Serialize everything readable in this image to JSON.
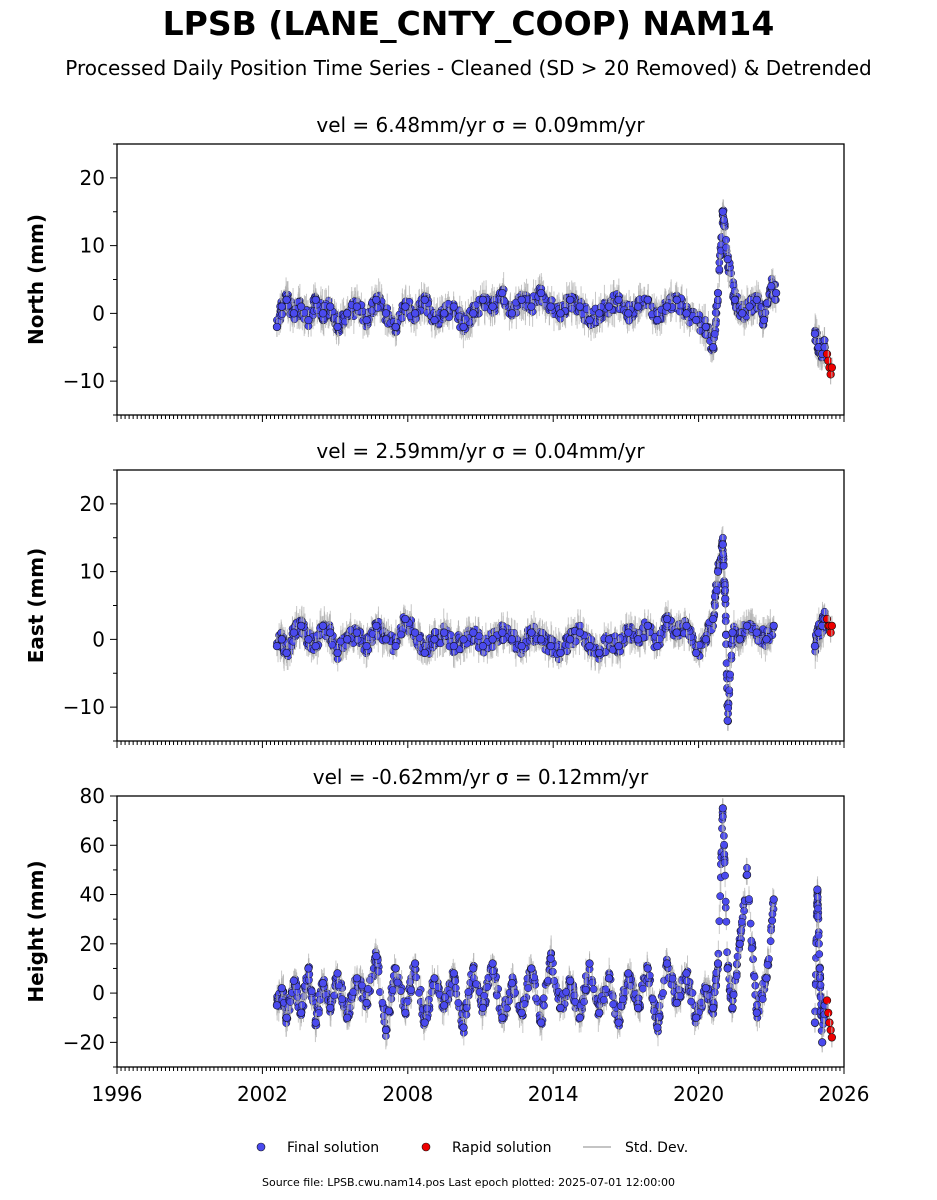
{
  "title": "LPSB (LANE_CNTY_COOP) NAM14",
  "subtitle": "Processed Daily Position Time Series - Cleaned (SD > 20 Removed) & Detrended",
  "footer": "Source file: LPSB.cwu.nam14.pos  Last epoch plotted: 2025-07-01 12:00:00",
  "legend": {
    "final_label": "Final solution",
    "rapid_label": "Rapid solution",
    "stddev_label": "Std. Dev."
  },
  "colors": {
    "final": "#4a4aee",
    "rapid": "#ee0000",
    "stddev": "#b0b0b0"
  },
  "chart_data": [
    {
      "type": "scatter",
      "title": "vel = 6.48mm/yr   σ = 0.09mm/yr",
      "ylabel": "North (mm)",
      "xlim": [
        1996,
        2026
      ],
      "ylim": [
        -15,
        25
      ],
      "xticks": [
        "1996",
        "2002",
        "2008",
        "2014",
        "2020",
        "2026"
      ],
      "yticks": [
        -10,
        0,
        10,
        20
      ],
      "ytick_labels": [
        "−10",
        "0",
        "10",
        "20"
      ],
      "series": [
        {
          "name": "Final solution",
          "x": [
            2002.6,
            2002.8,
            2003.0,
            2003.3,
            2003.6,
            2003.9,
            2004.2,
            2004.5,
            2004.8,
            2005.1,
            2005.5,
            2005.9,
            2006.3,
            2006.7,
            2007.1,
            2007.5,
            2007.9,
            2008.3,
            2008.7,
            2009.1,
            2009.5,
            2009.9,
            2010.3,
            2010.7,
            2011.1,
            2011.5,
            2011.9,
            2012.3,
            2012.7,
            2013.1,
            2013.5,
            2013.9,
            2014.3,
            2014.7,
            2015.1,
            2015.5,
            2015.9,
            2016.3,
            2016.7,
            2017.1,
            2017.5,
            2017.9,
            2018.3,
            2018.7,
            2019.1,
            2019.5,
            2019.9,
            2020.3,
            2020.6,
            2020.8,
            2021.0,
            2021.2,
            2021.5,
            2021.8,
            2022.1,
            2022.4,
            2022.7,
            2023.0,
            2023.2,
            2024.8,
            2024.95,
            2025.1,
            2025.2
          ],
          "y": [
            -2,
            1,
            2,
            0,
            1,
            -1,
            2,
            0,
            1,
            -2,
            0,
            1,
            -1,
            2,
            0,
            -2,
            1,
            0,
            2,
            -1,
            0,
            1,
            -2,
            0,
            2,
            1,
            3,
            0,
            2,
            1,
            3,
            1,
            0,
            2,
            1,
            -1,
            0,
            1,
            2,
            0,
            1,
            2,
            -1,
            1,
            2,
            0,
            -1,
            -2,
            -5,
            3,
            15,
            8,
            2,
            0,
            1,
            2,
            -1,
            4,
            3,
            -3,
            -5,
            -6,
            -5
          ]
        },
        {
          "name": "Rapid solution",
          "x": [
            2025.3,
            2025.35,
            2025.4,
            2025.45,
            2025.5
          ],
          "y": [
            -6,
            -7,
            -8,
            -9,
            -8
          ]
        }
      ]
    },
    {
      "type": "scatter",
      "title": "vel = 2.59mm/yr   σ = 0.04mm/yr",
      "ylabel": "East (mm)",
      "xlim": [
        1996,
        2026
      ],
      "ylim": [
        -15,
        25
      ],
      "xticks": [
        "1996",
        "2002",
        "2008",
        "2014",
        "2020",
        "2026"
      ],
      "yticks": [
        -10,
        0,
        10,
        20
      ],
      "ytick_labels": [
        "−10",
        "0",
        "10",
        "20"
      ],
      "series": [
        {
          "name": "Final solution",
          "x": [
            2002.6,
            2002.8,
            2003.0,
            2003.3,
            2003.6,
            2003.9,
            2004.2,
            2004.5,
            2004.8,
            2005.1,
            2005.5,
            2005.9,
            2006.3,
            2006.7,
            2007.1,
            2007.5,
            2007.9,
            2008.3,
            2008.7,
            2009.1,
            2009.5,
            2009.9,
            2010.3,
            2010.7,
            2011.1,
            2011.5,
            2011.9,
            2012.3,
            2012.7,
            2013.1,
            2013.5,
            2013.9,
            2014.3,
            2014.7,
            2015.1,
            2015.5,
            2015.9,
            2016.3,
            2016.7,
            2017.1,
            2017.5,
            2017.9,
            2018.3,
            2018.7,
            2019.1,
            2019.5,
            2019.9,
            2020.3,
            2020.6,
            2020.8,
            2021.0,
            2021.1,
            2021.2,
            2021.4,
            2021.7,
            2022.0,
            2022.4,
            2022.8,
            2023.1,
            2024.8,
            2024.95,
            2025.1,
            2025.2
          ],
          "y": [
            -1,
            0,
            -2,
            1,
            2,
            0,
            -1,
            2,
            1,
            -2,
            0,
            1,
            -1,
            2,
            0,
            -1,
            3,
            1,
            -2,
            0,
            1,
            -1,
            0,
            1,
            -1,
            0,
            1,
            0,
            -1,
            1,
            0,
            -1,
            -2,
            0,
            1,
            -1,
            -2,
            0,
            -1,
            1,
            0,
            2,
            -1,
            3,
            1,
            2,
            -2,
            0,
            3,
            10,
            14,
            6,
            -12,
            1,
            0,
            2,
            1,
            0,
            2,
            -1,
            1,
            2,
            3
          ]
        },
        {
          "name": "Rapid solution",
          "x": [
            2025.3,
            2025.35,
            2025.4,
            2025.45,
            2025.5
          ],
          "y": [
            3,
            2,
            2,
            1,
            2
          ]
        }
      ]
    },
    {
      "type": "scatter",
      "title": "vel = -0.62mm/yr   σ = 0.12mm/yr",
      "ylabel": "Height (mm)",
      "xlim": [
        1996,
        2026
      ],
      "ylim": [
        -30,
        80
      ],
      "xticks": [
        "1996",
        "2002",
        "2008",
        "2014",
        "2020",
        "2026"
      ],
      "yticks": [
        -20,
        0,
        20,
        40,
        60,
        80
      ],
      "ytick_labels": [
        "−20",
        "0",
        "20",
        "40",
        "60",
        "80"
      ],
      "series": [
        {
          "name": "Final solution",
          "x": [
            2002.6,
            2002.8,
            2003.0,
            2003.3,
            2003.6,
            2003.9,
            2004.2,
            2004.5,
            2004.8,
            2005.1,
            2005.5,
            2005.9,
            2006.3,
            2006.7,
            2007.1,
            2007.5,
            2007.9,
            2008.3,
            2008.7,
            2009.1,
            2009.5,
            2009.9,
            2010.3,
            2010.7,
            2011.1,
            2011.5,
            2011.9,
            2012.3,
            2012.7,
            2013.1,
            2013.5,
            2013.9,
            2014.3,
            2014.7,
            2015.1,
            2015.5,
            2015.9,
            2016.3,
            2016.7,
            2017.1,
            2017.5,
            2017.9,
            2018.3,
            2018.7,
            2019.1,
            2019.5,
            2019.9,
            2020.3,
            2020.6,
            2020.8,
            2021.0,
            2021.2,
            2021.4,
            2021.7,
            2022.0,
            2022.4,
            2022.8,
            2023.1,
            2024.8,
            2024.9,
            2025.0,
            2025.1,
            2025.2
          ],
          "y": [
            -5,
            2,
            -10,
            5,
            -8,
            10,
            -12,
            4,
            -6,
            8,
            -10,
            6,
            -4,
            15,
            -15,
            10,
            -8,
            12,
            -12,
            6,
            -5,
            8,
            -14,
            10,
            -6,
            12,
            -10,
            4,
            -8,
            10,
            -12,
            14,
            -6,
            5,
            -10,
            12,
            -8,
            6,
            -12,
            8,
            -6,
            10,
            -14,
            12,
            -4,
            8,
            -10,
            2,
            -6,
            12,
            75,
            10,
            -6,
            20,
            48,
            -8,
            6,
            38,
            -12,
            42,
            10,
            -20,
            -5
          ]
        },
        {
          "name": "Rapid solution",
          "x": [
            2025.3,
            2025.35,
            2025.4,
            2025.45,
            2025.5
          ],
          "y": [
            -3,
            -8,
            -12,
            -15,
            -18
          ]
        }
      ]
    }
  ]
}
